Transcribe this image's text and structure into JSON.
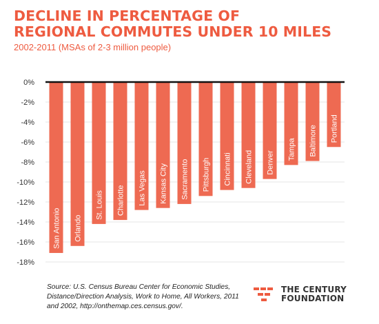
{
  "title_line1": "DECLINE IN PERCENTAGE OF",
  "title_line2": "REGIONAL COMMUTES UNDER 10 MILES",
  "subtitle": "2002-2011 (MSAs of 2-3 million people)",
  "source": "Source: U.S. Census Bureau Center for Economic Studies, Distance/Direction Analysis, Work to Home, All Workers, 2011 and 2002, http://onthemap.ces.census.gov/.",
  "logo": {
    "line1": "THE CENTURY",
    "line2": "FOUNDATION"
  },
  "colors": {
    "bar": "#ee6a52",
    "title": "#ee5b40",
    "axis": "#111111",
    "grid": "#e5e5e5"
  },
  "chart_data": {
    "type": "bar",
    "orientation": "vertical",
    "title": "DECLINE IN PERCENTAGE OF REGIONAL COMMUTES UNDER 10 MILES",
    "subtitle": "2002-2011 (MSAs of 2-3 million people)",
    "categories": [
      "San Antonio",
      "Orlando",
      "St. Louis",
      "Charlotte",
      "Las Vegas",
      "Kansas City",
      "Sacramento",
      "Pittsburgh",
      "Cincinnati",
      "Cleveland",
      "Denver",
      "Tampa",
      "Baltimore",
      "Portland"
    ],
    "values": [
      -17.1,
      -16.4,
      -14.2,
      -13.8,
      -12.8,
      -12.6,
      -12.2,
      -11.4,
      -10.8,
      -10.6,
      -9.7,
      -8.3,
      -7.9,
      -6.5
    ],
    "ylim": [
      -18,
      0
    ],
    "yticks": [
      0,
      -2,
      -4,
      -6,
      -8,
      -10,
      -12,
      -14,
      -16,
      -18
    ],
    "ytick_labels": [
      "0%",
      "-2%",
      "-4%",
      "-6%",
      "-8%",
      "-10%",
      "-12%",
      "-14%",
      "-16%",
      "-18%"
    ],
    "category_labels_inside_bars": true,
    "grid": true,
    "xlabel": "",
    "ylabel": ""
  }
}
